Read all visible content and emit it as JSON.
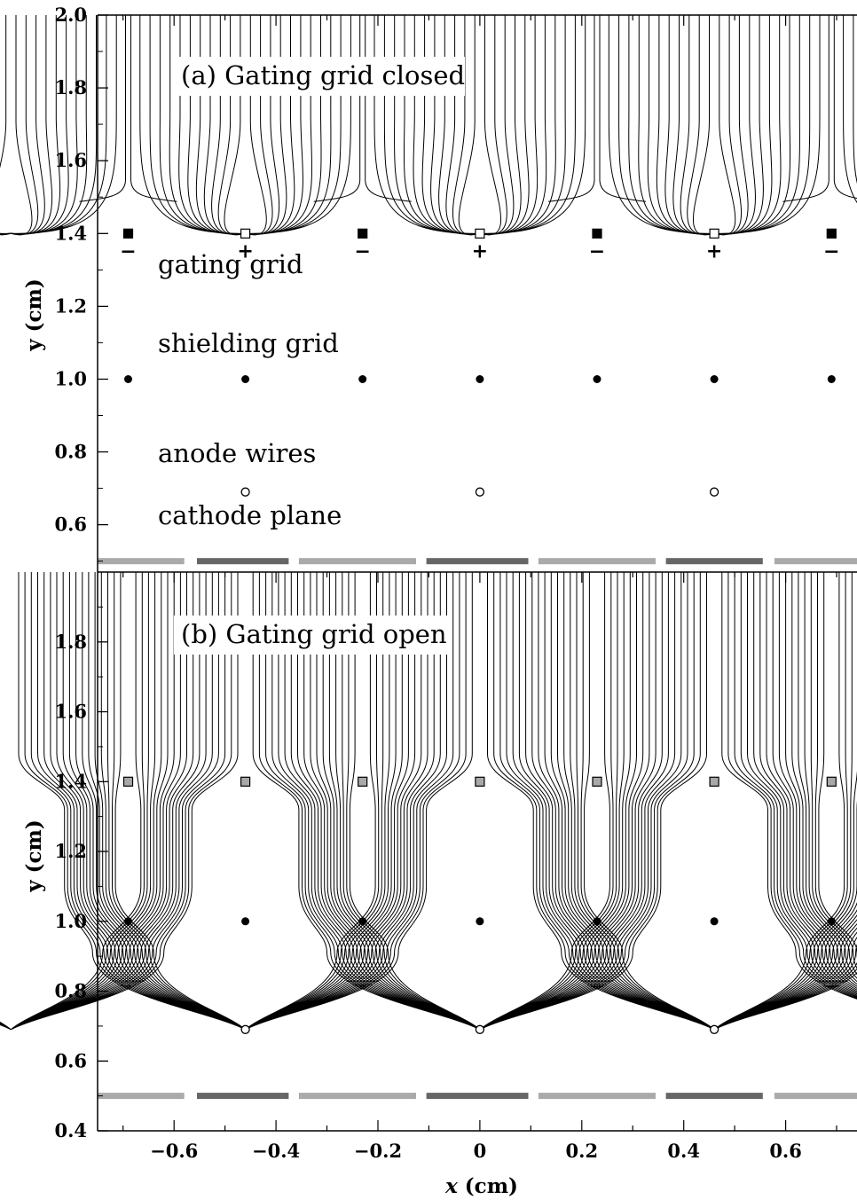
{
  "figure": {
    "xlabel_var": "x",
    "xlabel_unit": " (cm)",
    "x_ticks": [
      -0.6,
      -0.4,
      -0.2,
      0,
      0.2,
      0.4,
      0.6
    ],
    "x_tick_labels": [
      "−0.6",
      "−0.4",
      "−0.2",
      "0",
      "0.2",
      "0.4",
      "0.6"
    ],
    "xlim": [
      -0.75,
      0.74
    ],
    "cathode_plane_y": 0.5,
    "cathode_segments": [
      {
        "x0": -0.75,
        "x1": -0.58,
        "shade": "light"
      },
      {
        "x0": -0.555,
        "x1": -0.375,
        "shade": "dark"
      },
      {
        "x0": -0.355,
        "x1": -0.125,
        "shade": "light"
      },
      {
        "x0": -0.105,
        "x1": 0.095,
        "shade": "dark"
      },
      {
        "x0": 0.115,
        "x1": 0.345,
        "shade": "light"
      },
      {
        "x0": 0.365,
        "x1": 0.555,
        "shade": "dark"
      },
      {
        "x0": 0.578,
        "x1": 0.74,
        "shade": "light"
      }
    ],
    "colors": {
      "light_segment": "#aaaaaa",
      "dark_segment": "#666666",
      "open_gate_wire": "#a8a8a8"
    }
  },
  "panels": [
    {
      "id": "a",
      "title": "(a) Gating grid closed",
      "ylabel": "y (cm)",
      "ylim": [
        0.47,
        2.0
      ],
      "y_ticks": [
        0.6,
        0.8,
        1.0,
        1.2,
        1.4,
        1.6,
        1.8,
        2.0
      ],
      "y_tick_labels": [
        "0.6",
        "0.8",
        "1.0",
        "1.2",
        "1.4",
        "1.6",
        "1.8",
        "2.0"
      ],
      "labels": {
        "gating": "gating grid",
        "shielding": "shielding grid",
        "anode": "anode wires",
        "cathode": "cathode plane"
      },
      "gating_wires": [
        {
          "x": -0.69,
          "y": 1.4,
          "sign": "−"
        },
        {
          "x": -0.46,
          "y": 1.4,
          "sign": "+"
        },
        {
          "x": -0.23,
          "y": 1.4,
          "sign": "−"
        },
        {
          "x": 0.0,
          "y": 1.4,
          "sign": "+"
        },
        {
          "x": 0.23,
          "y": 1.4,
          "sign": "−"
        },
        {
          "x": 0.46,
          "y": 1.4,
          "sign": "+"
        },
        {
          "x": 0.69,
          "y": 1.4,
          "sign": "−"
        }
      ],
      "shielding_wires_x": [
        -0.69,
        -0.46,
        -0.23,
        0.0,
        0.23,
        0.46,
        0.69
      ],
      "shielding_y": 1.0,
      "anode_wires_x": [
        -0.46,
        0.0,
        0.46
      ],
      "anode_y": 0.69
    },
    {
      "id": "b",
      "title": "(b) Gating grid open",
      "ylabel": "y (cm)",
      "ylim": [
        0.4,
        2.0
      ],
      "y_ticks": [
        0.4,
        0.6,
        0.8,
        1.0,
        1.2,
        1.4,
        1.6,
        1.8
      ],
      "y_tick_labels": [
        "0.4",
        "0.6",
        "0.8",
        "1.0",
        "1.2",
        "1.4",
        "1.6",
        "1.8"
      ],
      "gating_wires_x": [
        -0.69,
        -0.46,
        -0.23,
        0.0,
        0.23,
        0.46,
        0.69
      ],
      "gating_y": 1.4,
      "shielding_wires_x": [
        -0.69,
        -0.46,
        -0.23,
        0.0,
        0.23,
        0.46,
        0.69
      ],
      "shielding_y": 1.0,
      "anode_wires_x": [
        -0.46,
        0.0,
        0.46
      ],
      "anode_y": 0.69
    }
  ]
}
